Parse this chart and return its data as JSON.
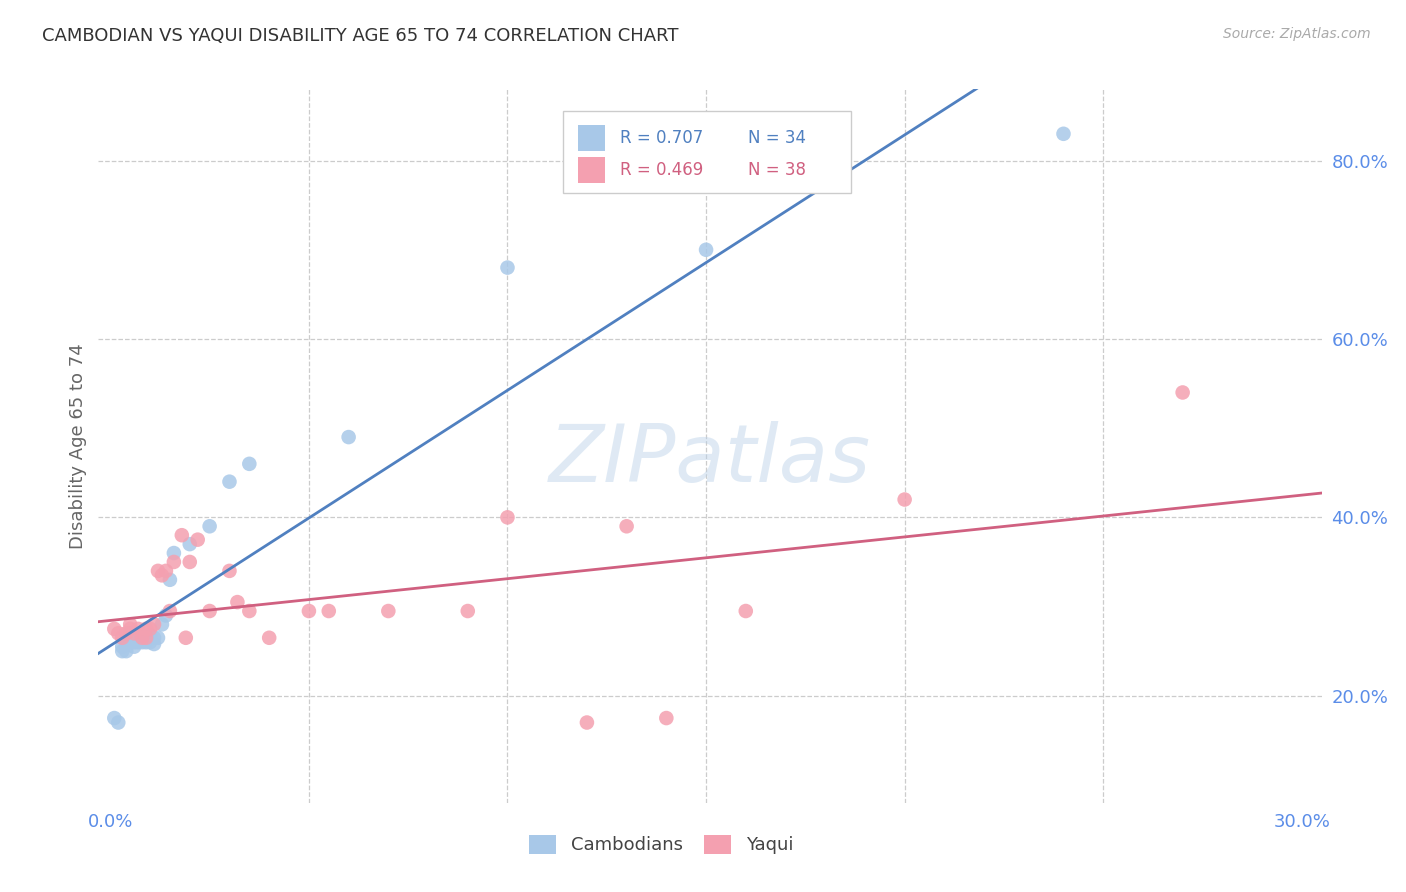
{
  "title": "CAMBODIAN VS YAQUI DISABILITY AGE 65 TO 74 CORRELATION CHART",
  "source": "Source: ZipAtlas.com",
  "ylabel": "Disability Age 65 to 74",
  "xlim": [
    -0.003,
    0.305
  ],
  "ylim": [
    0.08,
    0.88
  ],
  "xticks": [
    0.0,
    0.05,
    0.1,
    0.15,
    0.2,
    0.25,
    0.3
  ],
  "xtick_labels": [
    "0.0%",
    "",
    "",
    "",
    "",
    "",
    "30.0%"
  ],
  "yticks_right": [
    0.2,
    0.4,
    0.6,
    0.8
  ],
  "ytick_right_labels": [
    "20.0%",
    "40.0%",
    "60.0%",
    "80.0%"
  ],
  "cambodian_color": "#a8c8e8",
  "yaqui_color": "#f4a0b0",
  "blue_line_color": "#5080c0",
  "pink_line_color": "#d06080",
  "axis_tick_color": "#5b8de8",
  "legend_R_blue": "R = 0.707",
  "legend_N_blue": "N = 34",
  "legend_R_pink": "R = 0.469",
  "legend_N_pink": "N = 38",
  "legend_label_blue": "Cambodians",
  "legend_label_pink": "Yaqui",
  "watermark": "ZIPatlas",
  "cambodian_x": [
    0.001,
    0.002,
    0.003,
    0.003,
    0.004,
    0.004,
    0.005,
    0.005,
    0.006,
    0.006,
    0.007,
    0.007,
    0.008,
    0.008,
    0.008,
    0.009,
    0.009,
    0.01,
    0.01,
    0.011,
    0.011,
    0.012,
    0.013,
    0.014,
    0.015,
    0.016,
    0.02,
    0.025,
    0.03,
    0.035,
    0.06,
    0.1,
    0.15,
    0.24
  ],
  "cambodian_y": [
    0.175,
    0.17,
    0.25,
    0.255,
    0.25,
    0.26,
    0.265,
    0.27,
    0.255,
    0.26,
    0.26,
    0.27,
    0.26,
    0.265,
    0.265,
    0.26,
    0.265,
    0.26,
    0.268,
    0.265,
    0.258,
    0.265,
    0.28,
    0.29,
    0.33,
    0.36,
    0.37,
    0.39,
    0.44,
    0.46,
    0.49,
    0.68,
    0.7,
    0.83
  ],
  "yaqui_x": [
    0.001,
    0.002,
    0.003,
    0.004,
    0.005,
    0.005,
    0.006,
    0.007,
    0.008,
    0.009,
    0.009,
    0.01,
    0.011,
    0.012,
    0.013,
    0.014,
    0.015,
    0.016,
    0.018,
    0.019,
    0.02,
    0.022,
    0.025,
    0.03,
    0.032,
    0.035,
    0.04,
    0.05,
    0.055,
    0.07,
    0.09,
    0.1,
    0.12,
    0.13,
    0.14,
    0.16,
    0.2,
    0.27
  ],
  "yaqui_y": [
    0.275,
    0.27,
    0.265,
    0.27,
    0.28,
    0.275,
    0.27,
    0.275,
    0.265,
    0.275,
    0.265,
    0.275,
    0.28,
    0.34,
    0.335,
    0.34,
    0.295,
    0.35,
    0.38,
    0.265,
    0.35,
    0.375,
    0.295,
    0.34,
    0.305,
    0.295,
    0.265,
    0.295,
    0.295,
    0.295,
    0.295,
    0.4,
    0.17,
    0.39,
    0.175,
    0.295,
    0.42,
    0.54
  ]
}
